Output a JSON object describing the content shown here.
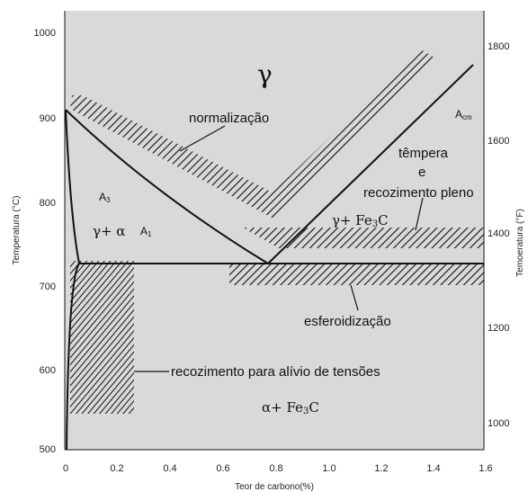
{
  "axes": {
    "x_label": "Teor de carbono(%)",
    "y_left_label": "Temperatura (°C)",
    "y_right_label": "Temoeratura (°F)",
    "x_ticks": [
      "0",
      "0.2",
      "0.4",
      "0.6",
      "0.8",
      "1.0",
      "1.2",
      "1.4",
      "1.6"
    ],
    "y_left_ticks": [
      "500",
      "600",
      "700",
      "800",
      "900",
      "1000"
    ],
    "y_right_ticks": [
      "1000",
      "1200",
      "1400",
      "1600",
      "1800"
    ]
  },
  "labels": {
    "gamma": "γ",
    "normalizacao": "normalização",
    "acm_main": "A",
    "acm_sub": "cm",
    "tempera": "têmpera",
    "e": "e",
    "recozimento_pleno": "recozimento pleno",
    "a3_main": "A",
    "a3_sub": "3",
    "gamma_alpha": "γ+ α",
    "a1_main": "A",
    "a1_sub": "1",
    "gamma_fe3c_main": "γ+ Fe",
    "gamma_fe3c_sub": "3",
    "gamma_fe3c_end": "C",
    "esferoidizacao": "esferoidização",
    "recozimento_alivio": "recozimento para alívio de tensões",
    "alpha_fe3c_main": "α+ Fe",
    "alpha_fe3c_sub": "3",
    "alpha_fe3c_end": "C"
  },
  "colors": {
    "background": "#d9d9d9",
    "line": "#111111"
  }
}
